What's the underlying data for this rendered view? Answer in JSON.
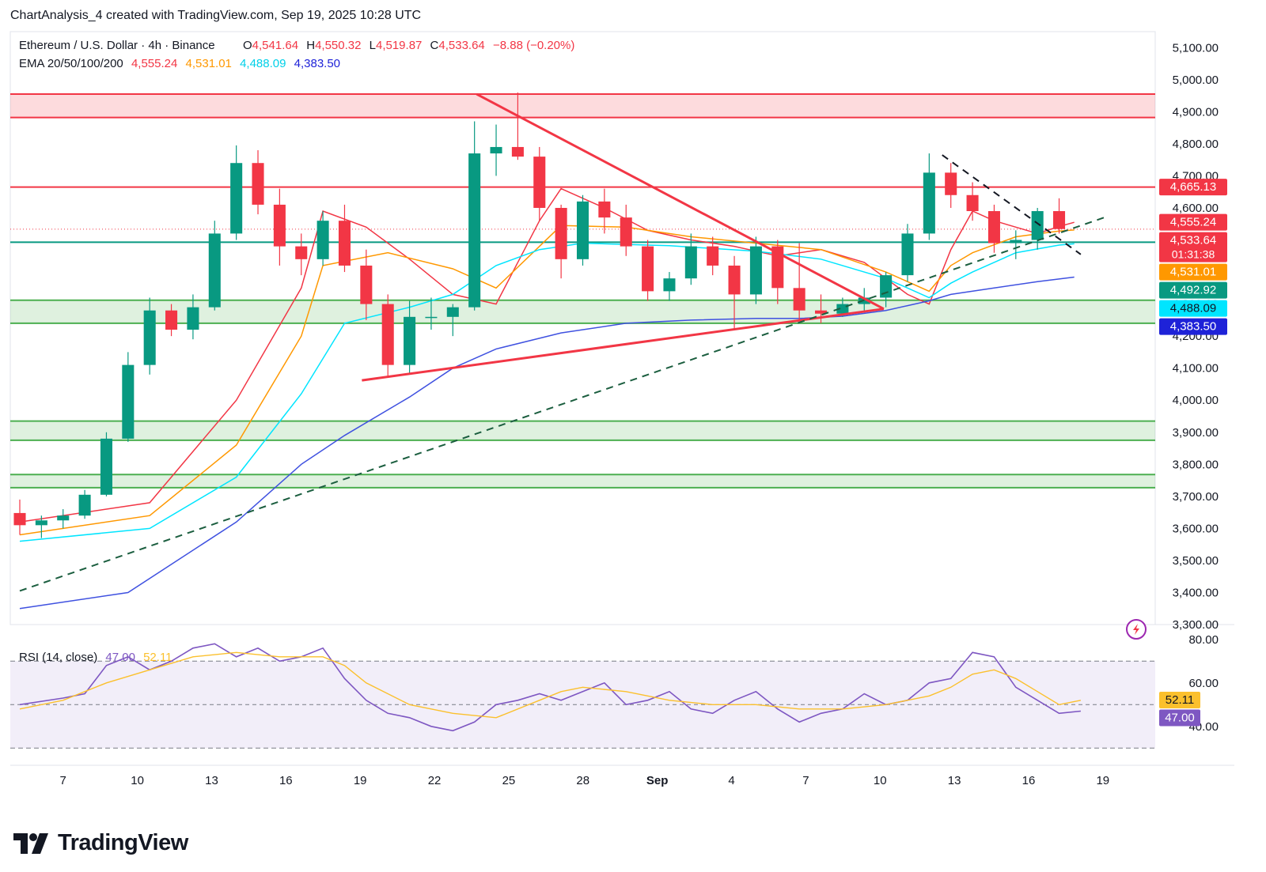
{
  "header": {
    "text": "ChartAnalysis_4 created with TradingView.com, Sep 19, 2025 10:28 UTC"
  },
  "brand": {
    "name": "TradingView"
  },
  "chart_data": [
    {
      "type": "candlestick",
      "symbol_title": "Ethereum / U.S. Dollar · 4h · Binance",
      "ohlc": {
        "o_label": "O",
        "o": "4,541.64",
        "h_label": "H",
        "h": "4,550.32",
        "l_label": "L",
        "l": "4,519.87",
        "c_label": "C",
        "c": "4,533.64",
        "change": "−8.88 (−0.20%)"
      },
      "ema_legend": {
        "label": "EMA 20/50/100/200",
        "ema20": "4,555.24",
        "ema50": "4,531.01",
        "ema100": "4,488.09",
        "ema200": "4,383.50"
      },
      "ylim": [
        3300,
        5150
      ],
      "y_ticks": [
        "5,100.00",
        "5,000.00",
        "4,900.00",
        "4,800.00",
        "4,700.00",
        "4,600.00",
        "4,500.00",
        "4,400.00",
        "4,300.00",
        "4,200.00",
        "4,100.00",
        "4,000.00",
        "3,900.00",
        "3,800.00",
        "3,700.00",
        "3,600.00",
        "3,500.00",
        "3,400.00",
        "3,300.00"
      ],
      "x_ticks": [
        "7",
        "10",
        "13",
        "16",
        "19",
        "22",
        "25",
        "28",
        "Sep",
        "4",
        "7",
        "10",
        "13",
        "16",
        "19"
      ],
      "zones": [
        {
          "type": "resistance",
          "from": 4882,
          "to": 4955,
          "color": "#f23645"
        },
        {
          "type": "support",
          "from": 4240,
          "to": 4312,
          "color": "#4caf50"
        },
        {
          "type": "support",
          "from": 3875,
          "to": 3935,
          "color": "#4caf50"
        },
        {
          "type": "support",
          "from": 3727,
          "to": 3768,
          "color": "#4caf50"
        }
      ],
      "levels": [
        {
          "value": 4665.13,
          "label": "4,665.13",
          "color": "#f23645"
        },
        {
          "value": 4492.92,
          "label": "4,492.92",
          "color": "#089981"
        }
      ],
      "price_labels": [
        {
          "value": 4555.24,
          "label": "4,555.24",
          "color": "#f23645"
        },
        {
          "value": 4533.64,
          "label": "4,533.64",
          "countdown": "01:31:38",
          "color": "#f23645"
        },
        {
          "value": 4531.01,
          "label": "4,531.01",
          "color": "#ff9800"
        },
        {
          "value": 4488.09,
          "label": "4,488.09",
          "color": "#00e5ff"
        },
        {
          "value": 4383.5,
          "label": "4,383.50",
          "color": "#1e22d8"
        }
      ],
      "ema_series": [
        {
          "period": 20,
          "color": "#f23645",
          "points": [
            [
              0,
              3620
            ],
            [
              6,
              3680
            ],
            [
              10,
              4000
            ],
            [
              13,
              4350
            ],
            [
              14,
              4590
            ],
            [
              16,
              4540
            ],
            [
              18,
              4440
            ],
            [
              20,
              4330
            ],
            [
              22,
              4300
            ],
            [
              24,
              4560
            ],
            [
              25,
              4660
            ],
            [
              27,
              4600
            ],
            [
              29,
              4530
            ],
            [
              31,
              4500
            ],
            [
              33,
              4480
            ],
            [
              35,
              4450
            ],
            [
              37,
              4470
            ],
            [
              39,
              4430
            ],
            [
              41,
              4330
            ],
            [
              42,
              4300
            ],
            [
              43,
              4470
            ],
            [
              44,
              4590
            ],
            [
              45,
              4560
            ],
            [
              46,
              4540
            ],
            [
              47,
              4520
            ],
            [
              48,
              4542
            ],
            [
              48.7,
              4555
            ]
          ]
        },
        {
          "period": 50,
          "color": "#ff9800",
          "points": [
            [
              0,
              3580
            ],
            [
              6,
              3640
            ],
            [
              10,
              3860
            ],
            [
              13,
              4200
            ],
            [
              14,
              4420
            ],
            [
              17,
              4460
            ],
            [
              20,
              4410
            ],
            [
              22,
              4350
            ],
            [
              24,
              4480
            ],
            [
              25,
              4545
            ],
            [
              28,
              4540
            ],
            [
              31,
              4510
            ],
            [
              34,
              4490
            ],
            [
              37,
              4470
            ],
            [
              40,
              4400
            ],
            [
              42,
              4340
            ],
            [
              43,
              4420
            ],
            [
              44,
              4460
            ],
            [
              46,
              4510
            ],
            [
              48,
              4528
            ],
            [
              48.7,
              4531
            ]
          ]
        },
        {
          "period": 100,
          "color": "#00e5ff",
          "points": [
            [
              0,
              3560
            ],
            [
              6,
              3600
            ],
            [
              10,
              3760
            ],
            [
              13,
              4020
            ],
            [
              15,
              4240
            ],
            [
              18,
              4290
            ],
            [
              20,
              4330
            ],
            [
              22,
              4420
            ],
            [
              24,
              4470
            ],
            [
              26,
              4490
            ],
            [
              30,
              4482
            ],
            [
              34,
              4465
            ],
            [
              37,
              4440
            ],
            [
              40,
              4380
            ],
            [
              42,
              4320
            ],
            [
              43,
              4365
            ],
            [
              44,
              4400
            ],
            [
              46,
              4460
            ],
            [
              48,
              4484
            ],
            [
              48.7,
              4488
            ]
          ]
        },
        {
          "period": 200,
          "color": "#3f51e0",
          "points": [
            [
              0,
              3350
            ],
            [
              5,
              3400
            ],
            [
              10,
              3620
            ],
            [
              13,
              3800
            ],
            [
              15,
              3890
            ],
            [
              18,
              4010
            ],
            [
              20,
              4100
            ],
            [
              22,
              4160
            ],
            [
              25,
              4210
            ],
            [
              28,
              4240
            ],
            [
              31,
              4250
            ],
            [
              34,
              4255
            ],
            [
              36,
              4255
            ],
            [
              38,
              4262
            ],
            [
              40,
              4280
            ],
            [
              41,
              4295
            ],
            [
              42,
              4310
            ],
            [
              43,
              4330
            ],
            [
              45,
              4350
            ],
            [
              47,
              4370
            ],
            [
              48.7,
              4384
            ]
          ]
        }
      ],
      "trendlines": [
        {
          "style": "solid",
          "color": "#f23645",
          "points": [
            [
              21.1,
              4955
            ],
            [
              39.9,
              4285
            ]
          ]
        },
        {
          "style": "solid",
          "color": "#f23645",
          "points": [
            [
              15.8,
              4062
            ],
            [
              39.9,
              4285
            ]
          ]
        },
        {
          "style": "dashed",
          "color": "#1b5e3f",
          "points": [
            [
              0,
              3405
            ],
            [
              50.3,
              4575
            ]
          ]
        },
        {
          "style": "dashed",
          "color": "#131722",
          "points": [
            [
              42.6,
              4765
            ],
            [
              49.0,
              4455
            ]
          ]
        }
      ],
      "candles": [
        [
          3648,
          3690,
          3580,
          3610
        ],
        [
          3610,
          3640,
          3570,
          3625
        ],
        [
          3625,
          3660,
          3600,
          3640
        ],
        [
          3640,
          3720,
          3630,
          3705
        ],
        [
          3705,
          3900,
          3700,
          3880
        ],
        [
          3880,
          4150,
          3870,
          4110
        ],
        [
          4110,
          4320,
          4080,
          4280
        ],
        [
          4280,
          4300,
          4200,
          4220
        ],
        [
          4220,
          4330,
          4190,
          4290
        ],
        [
          4290,
          4560,
          4280,
          4520
        ],
        [
          4520,
          4795,
          4500,
          4740
        ],
        [
          4740,
          4780,
          4580,
          4610
        ],
        [
          4610,
          4660,
          4420,
          4480
        ],
        [
          4480,
          4520,
          4390,
          4440
        ],
        [
          4440,
          4590,
          4420,
          4560
        ],
        [
          4560,
          4610,
          4400,
          4420
        ],
        [
          4420,
          4470,
          4250,
          4300
        ],
        [
          4300,
          4330,
          4070,
          4110
        ],
        [
          4110,
          4310,
          4080,
          4260
        ],
        [
          4260,
          4320,
          4220,
          4260
        ],
        [
          4260,
          4300,
          4200,
          4290
        ],
        [
          4290,
          4870,
          4280,
          4770
        ],
        [
          4770,
          4860,
          4700,
          4790
        ],
        [
          4790,
          4960,
          4750,
          4760
        ],
        [
          4760,
          4790,
          4560,
          4600
        ],
        [
          4600,
          4610,
          4380,
          4440
        ],
        [
          4440,
          4640,
          4420,
          4620
        ],
        [
          4620,
          4660,
          4520,
          4570
        ],
        [
          4570,
          4610,
          4450,
          4480
        ],
        [
          4480,
          4500,
          4310,
          4340
        ],
        [
          4340,
          4400,
          4310,
          4380
        ],
        [
          4380,
          4520,
          4360,
          4480
        ],
        [
          4480,
          4510,
          4390,
          4420
        ],
        [
          4420,
          4450,
          4220,
          4330
        ],
        [
          4330,
          4510,
          4300,
          4480
        ],
        [
          4480,
          4500,
          4300,
          4350
        ],
        [
          4350,
          4490,
          4250,
          4280
        ],
        [
          4280,
          4330,
          4240,
          4270
        ],
        [
          4270,
          4320,
          4260,
          4300
        ],
        [
          4300,
          4350,
          4280,
          4320
        ],
        [
          4320,
          4400,
          4290,
          4390
        ],
        [
          4390,
          4550,
          4370,
          4520
        ],
        [
          4520,
          4770,
          4500,
          4710
        ],
        [
          4710,
          4740,
          4600,
          4640
        ],
        [
          4640,
          4680,
          4560,
          4590
        ],
        [
          4590,
          4610,
          4460,
          4490
        ],
        [
          4490,
          4530,
          4440,
          4500
        ],
        [
          4500,
          4600,
          4470,
          4590
        ],
        [
          4590,
          4630,
          4520,
          4534
        ]
      ]
    },
    {
      "type": "line",
      "title": "RSI (14, close)",
      "rsi_value": "47.00",
      "ma_value": "52.11",
      "ylim": [
        25,
        85
      ],
      "y_ticks": [
        "80.00",
        "60.00",
        "40.00"
      ],
      "bands": {
        "upper": 70,
        "middle": 50,
        "lower": 30
      },
      "series": [
        {
          "color": "#7e57c2",
          "points": [
            [
              0,
              50
            ],
            [
              2,
              53
            ],
            [
              3,
              55
            ],
            [
              4,
              68
            ],
            [
              5,
              72
            ],
            [
              6,
              66
            ],
            [
              7,
              70
            ],
            [
              8,
              76
            ],
            [
              9,
              78
            ],
            [
              10,
              72
            ],
            [
              11,
              76
            ],
            [
              12,
              70
            ],
            [
              13,
              72
            ],
            [
              14,
              76
            ],
            [
              15,
              62
            ],
            [
              16,
              52
            ],
            [
              17,
              46
            ],
            [
              18,
              44
            ],
            [
              19,
              40
            ],
            [
              20,
              38
            ],
            [
              21,
              42
            ],
            [
              22,
              50
            ],
            [
              23,
              52
            ],
            [
              24,
              55
            ],
            [
              25,
              52
            ],
            [
              26,
              56
            ],
            [
              27,
              60
            ],
            [
              28,
              50
            ],
            [
              29,
              52
            ],
            [
              30,
              56
            ],
            [
              31,
              48
            ],
            [
              32,
              46
            ],
            [
              33,
              52
            ],
            [
              34,
              56
            ],
            [
              35,
              48
            ],
            [
              36,
              42
            ],
            [
              37,
              46
            ],
            [
              38,
              48
            ],
            [
              39,
              55
            ],
            [
              40,
              50
            ],
            [
              41,
              52
            ],
            [
              42,
              60
            ],
            [
              43,
              62
            ],
            [
              44,
              74
            ],
            [
              45,
              72
            ],
            [
              46,
              58
            ],
            [
              47,
              52
            ],
            [
              48,
              46
            ],
            [
              49,
              47
            ]
          ]
        },
        {
          "color": "#fbc02d",
          "points": [
            [
              0,
              48
            ],
            [
              2,
              52
            ],
            [
              4,
              60
            ],
            [
              6,
              66
            ],
            [
              8,
              72
            ],
            [
              10,
              74
            ],
            [
              12,
              72
            ],
            [
              14,
              72
            ],
            [
              15,
              68
            ],
            [
              16,
              60
            ],
            [
              18,
              50
            ],
            [
              20,
              46
            ],
            [
              22,
              44
            ],
            [
              24,
              52
            ],
            [
              25,
              56
            ],
            [
              26,
              58
            ],
            [
              28,
              56
            ],
            [
              30,
              52
            ],
            [
              32,
              50
            ],
            [
              34,
              50
            ],
            [
              36,
              48
            ],
            [
              38,
              48
            ],
            [
              40,
              50
            ],
            [
              42,
              54
            ],
            [
              43,
              58
            ],
            [
              44,
              64
            ],
            [
              45,
              66
            ],
            [
              46,
              62
            ],
            [
              47,
              56
            ],
            [
              48,
              50
            ],
            [
              49,
              52
            ]
          ]
        }
      ]
    }
  ]
}
